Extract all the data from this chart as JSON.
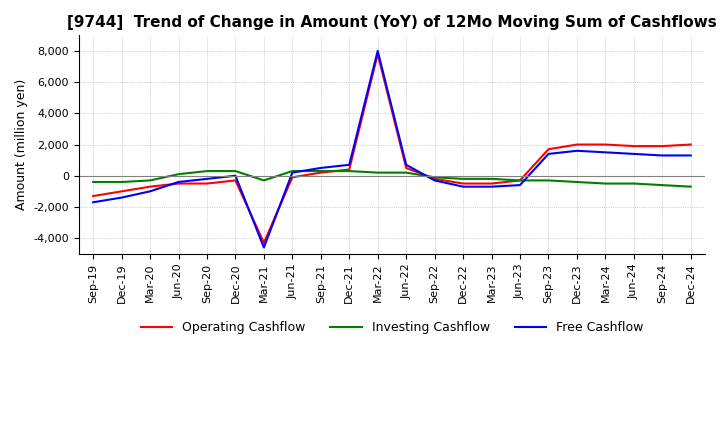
{
  "title": "[9744]  Trend of Change in Amount (YoY) of 12Mo Moving Sum of Cashflows",
  "ylabel": "Amount (million yen)",
  "x_labels": [
    "Sep-19",
    "Dec-19",
    "Mar-20",
    "Jun-20",
    "Sep-20",
    "Dec-20",
    "Mar-21",
    "Jun-21",
    "Sep-21",
    "Dec-21",
    "Mar-22",
    "Jun-22",
    "Sep-22",
    "Dec-22",
    "Mar-23",
    "Jun-23",
    "Sep-23",
    "Dec-23",
    "Mar-24",
    "Jun-24",
    "Sep-24",
    "Dec-24"
  ],
  "operating": [
    -1300,
    -1000,
    -700,
    -500,
    -500,
    -300,
    -4300,
    -100,
    200,
    400,
    7800,
    500,
    -200,
    -500,
    -500,
    -300,
    1700,
    2000,
    2000,
    1900,
    1900,
    2000
  ],
  "investing": [
    -400,
    -400,
    -300,
    100,
    300,
    300,
    -300,
    300,
    300,
    300,
    200,
    200,
    -100,
    -200,
    -200,
    -300,
    -300,
    -400,
    -500,
    -500,
    -600,
    -700
  ],
  "free": [
    -1700,
    -1400,
    -1000,
    -400,
    -200,
    0,
    -4600,
    200,
    500,
    700,
    8000,
    700,
    -300,
    -700,
    -700,
    -600,
    1400,
    1600,
    1500,
    1400,
    1300,
    1300
  ],
  "ylim": [
    -5000,
    9000
  ],
  "yticks": [
    -4000,
    -2000,
    0,
    2000,
    4000,
    6000,
    8000
  ],
  "operating_color": "#ff0000",
  "investing_color": "#008000",
  "free_color": "#0000ff",
  "grid_color": "#aaaaaa",
  "background_color": "#ffffff",
  "title_fontsize": 11,
  "axis_fontsize": 8,
  "ylabel_fontsize": 9,
  "legend_fontsize": 9
}
